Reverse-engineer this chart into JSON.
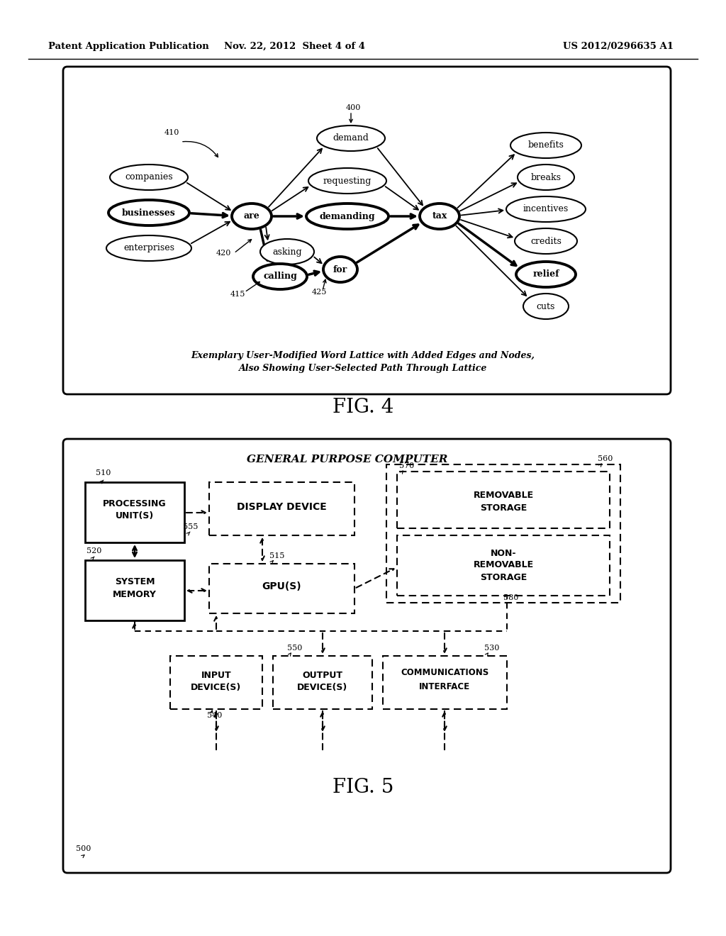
{
  "header_left": "Patent Application Publication",
  "header_mid": "Nov. 22, 2012  Sheet 4 of 4",
  "header_right": "US 2012/0296635 A1",
  "fig4_caption_line1": "Exemplary User-Modified Word Lattice with Added Edges and Nodes,",
  "fig4_caption_line2": "Also Showing User-Selected Path Through Lattice",
  "fig4_label": "FIG. 4",
  "fig5_label": "FIG. 5",
  "fig5_title": "GENERAL PURPOSE COMPUTER",
  "background": "#ffffff"
}
